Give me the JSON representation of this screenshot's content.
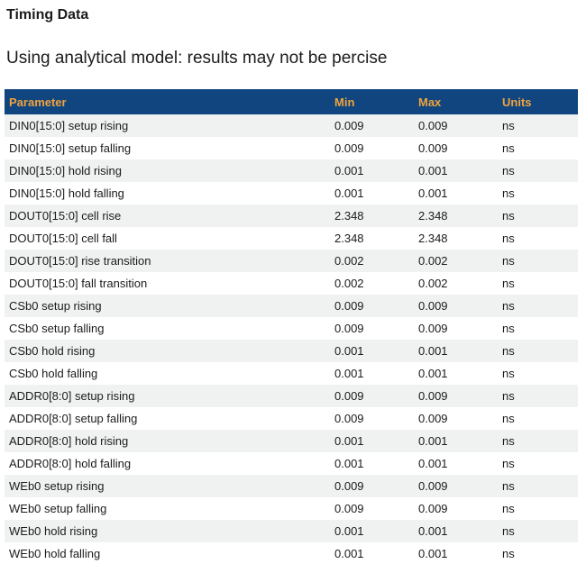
{
  "page": {
    "title": "Timing Data",
    "subtitle": "Using analytical model: results may not be percise"
  },
  "table": {
    "columns": [
      "Parameter",
      "Min",
      "Max",
      "Units"
    ],
    "rows": [
      {
        "parameter": "DIN0[15:0] setup rising",
        "min": "0.009",
        "max": "0.009",
        "units": "ns"
      },
      {
        "parameter": "DIN0[15:0] setup falling",
        "min": "0.009",
        "max": "0.009",
        "units": "ns"
      },
      {
        "parameter": "DIN0[15:0] hold rising",
        "min": "0.001",
        "max": "0.001",
        "units": "ns"
      },
      {
        "parameter": "DIN0[15:0] hold falling",
        "min": "0.001",
        "max": "0.001",
        "units": "ns"
      },
      {
        "parameter": "DOUT0[15:0] cell rise",
        "min": "2.348",
        "max": "2.348",
        "units": "ns"
      },
      {
        "parameter": "DOUT0[15:0] cell fall",
        "min": "2.348",
        "max": "2.348",
        "units": "ns"
      },
      {
        "parameter": "DOUT0[15:0] rise transition",
        "min": "0.002",
        "max": "0.002",
        "units": "ns"
      },
      {
        "parameter": "DOUT0[15:0] fall transition",
        "min": "0.002",
        "max": "0.002",
        "units": "ns"
      },
      {
        "parameter": "CSb0 setup rising",
        "min": "0.009",
        "max": "0.009",
        "units": "ns"
      },
      {
        "parameter": "CSb0 setup falling",
        "min": "0.009",
        "max": "0.009",
        "units": "ns"
      },
      {
        "parameter": "CSb0 hold rising",
        "min": "0.001",
        "max": "0.001",
        "units": "ns"
      },
      {
        "parameter": "CSb0 hold falling",
        "min": "0.001",
        "max": "0.001",
        "units": "ns"
      },
      {
        "parameter": "ADDR0[8:0] setup rising",
        "min": "0.009",
        "max": "0.009",
        "units": "ns"
      },
      {
        "parameter": "ADDR0[8:0] setup falling",
        "min": "0.009",
        "max": "0.009",
        "units": "ns"
      },
      {
        "parameter": "ADDR0[8:0] hold rising",
        "min": "0.001",
        "max": "0.001",
        "units": "ns"
      },
      {
        "parameter": "ADDR0[8:0] hold falling",
        "min": "0.001",
        "max": "0.001",
        "units": "ns"
      },
      {
        "parameter": "WEb0 setup rising",
        "min": "0.009",
        "max": "0.009",
        "units": "ns"
      },
      {
        "parameter": "WEb0 setup falling",
        "min": "0.009",
        "max": "0.009",
        "units": "ns"
      },
      {
        "parameter": "WEb0 hold rising",
        "min": "0.001",
        "max": "0.001",
        "units": "ns"
      },
      {
        "parameter": "WEb0 hold falling",
        "min": "0.001",
        "max": "0.001",
        "units": "ns"
      }
    ]
  },
  "colors": {
    "header_bg": "#104580",
    "header_text": "#f0a33c",
    "stripe_bg": "#f0f2f2"
  }
}
